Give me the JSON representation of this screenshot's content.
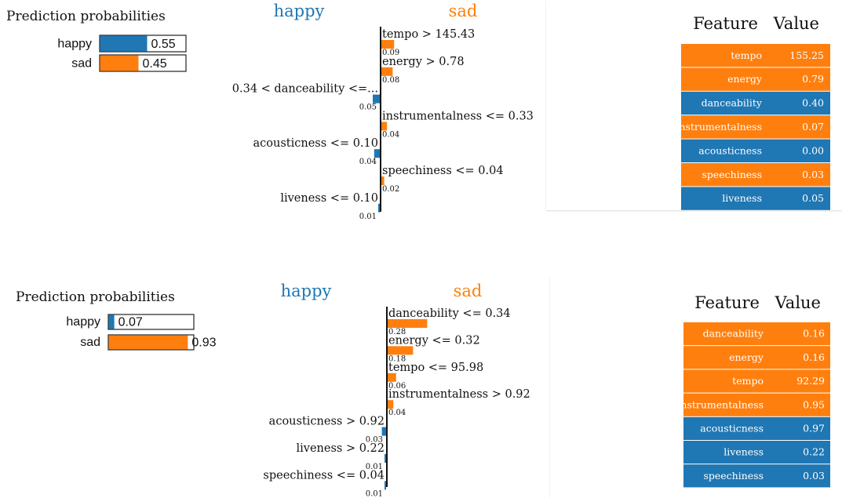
{
  "colors": {
    "happy": "#1f77b4",
    "sad": "#ff7f0e",
    "text": "#111111",
    "table_text": "#ffffff"
  },
  "chart_data": [
    {
      "type": "bar",
      "title": "Prediction probabilities",
      "categories": [
        "happy",
        "sad"
      ],
      "values": [
        0.55,
        0.45
      ],
      "value_labels": [
        "0.55",
        "0.45"
      ],
      "xlim": [
        0,
        1
      ],
      "series_colors": [
        "#1f77b4",
        "#ff7f0e"
      ]
    },
    {
      "type": "bar",
      "orientation": "horizontal-diverging",
      "legend": [
        "happy",
        "sad"
      ],
      "features": [
        {
          "label": "tempo > 145.43",
          "value": 0.09,
          "value_label": "0.09",
          "class": "sad"
        },
        {
          "label": "energy > 0.78",
          "value": 0.08,
          "value_label": "0.08",
          "class": "sad"
        },
        {
          "label": "0.34 < danceability <=...",
          "value": 0.05,
          "value_label": "0.05",
          "class": "happy"
        },
        {
          "label": "instrumentalness <= 0.33",
          "value": 0.04,
          "value_label": "0.04",
          "class": "sad"
        },
        {
          "label": "acousticness <= 0.10",
          "value": 0.04,
          "value_label": "0.04",
          "class": "happy"
        },
        {
          "label": "speechiness <= 0.04",
          "value": 0.02,
          "value_label": "0.02",
          "class": "sad"
        },
        {
          "label": "liveness <= 0.10",
          "value": 0.01,
          "value_label": "0.01",
          "class": "happy"
        }
      ]
    },
    {
      "type": "table",
      "headers": [
        "Feature",
        "Value"
      ],
      "rows": [
        {
          "feature": "tempo",
          "value": "155.25",
          "class": "sad"
        },
        {
          "feature": "energy",
          "value": "0.79",
          "class": "sad"
        },
        {
          "feature": "danceability",
          "value": "0.40",
          "class": "happy"
        },
        {
          "feature": "instrumentalness",
          "value": "0.07",
          "class": "sad"
        },
        {
          "feature": "acousticness",
          "value": "0.00",
          "class": "happy"
        },
        {
          "feature": "speechiness",
          "value": "0.03",
          "class": "sad"
        },
        {
          "feature": "liveness",
          "value": "0.05",
          "class": "happy"
        }
      ]
    },
    {
      "type": "bar",
      "title": "Prediction probabilities",
      "categories": [
        "happy",
        "sad"
      ],
      "values": [
        0.07,
        0.93
      ],
      "value_labels": [
        "0.07",
        "0.93"
      ],
      "xlim": [
        0,
        1
      ],
      "series_colors": [
        "#1f77b4",
        "#ff7f0e"
      ]
    },
    {
      "type": "bar",
      "orientation": "horizontal-diverging",
      "legend": [
        "happy",
        "sad"
      ],
      "features": [
        {
          "label": "danceability <= 0.34",
          "value": 0.28,
          "value_label": "0.28",
          "class": "sad"
        },
        {
          "label": "energy <= 0.32",
          "value": 0.18,
          "value_label": "0.18",
          "class": "sad"
        },
        {
          "label": "tempo <= 95.98",
          "value": 0.06,
          "value_label": "0.06",
          "class": "sad"
        },
        {
          "label": "instrumentalness > 0.92",
          "value": 0.04,
          "value_label": "0.04",
          "class": "sad"
        },
        {
          "label": "acousticness > 0.92",
          "value": 0.03,
          "value_label": "0.03",
          "class": "happy"
        },
        {
          "label": "liveness > 0.22",
          "value": 0.01,
          "value_label": "0.01",
          "class": "happy"
        },
        {
          "label": "speechiness <= 0.04",
          "value": 0.01,
          "value_label": "0.01",
          "class": "happy"
        }
      ]
    },
    {
      "type": "table",
      "headers": [
        "Feature",
        "Value"
      ],
      "rows": [
        {
          "feature": "danceability",
          "value": "0.16",
          "class": "sad"
        },
        {
          "feature": "energy",
          "value": "0.16",
          "class": "sad"
        },
        {
          "feature": "tempo",
          "value": "92.29",
          "class": "sad"
        },
        {
          "feature": "instrumentalness",
          "value": "0.95",
          "class": "sad"
        },
        {
          "feature": "acousticness",
          "value": "0.97",
          "class": "happy"
        },
        {
          "feature": "liveness",
          "value": "0.22",
          "class": "happy"
        },
        {
          "feature": "speechiness",
          "value": "0.03",
          "class": "happy"
        }
      ]
    }
  ]
}
